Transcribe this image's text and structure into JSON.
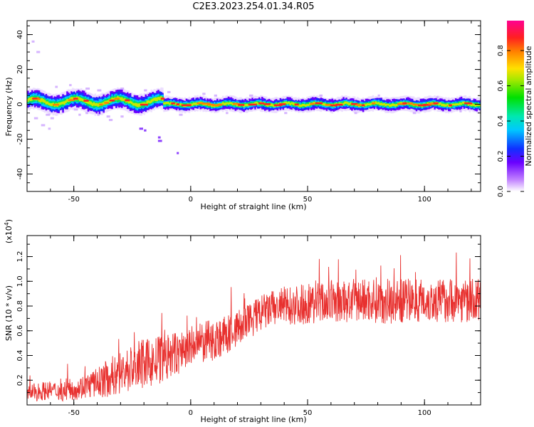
{
  "title": "C2E3.2023.254.01.34.R05",
  "chart_data": [
    {
      "type": "heatmap",
      "xlabel": "Height of straight line (km)",
      "ylabel": "Frequency (Hz)",
      "xlim": [
        -70,
        124
      ],
      "ylim": [
        -50,
        48
      ],
      "xticks": [
        -50,
        0,
        50,
        100
      ],
      "yticks": [
        -40,
        -20,
        0,
        20,
        40
      ],
      "colorbar": {
        "label": "Normalized spectral amplitude",
        "range": [
          0,
          0.97
        ],
        "ticks": [
          "0.0",
          "0.2",
          "0.4",
          "0.6",
          "0.8"
        ]
      },
      "grid": false
    },
    {
      "type": "line",
      "xlabel": "Height of straight line (km)",
      "ylabel": "SNR (10 * v/v)",
      "y_multiplier": "(x10^4)",
      "xlim": [
        -70,
        124
      ],
      "ylim": [
        0,
        1.37
      ],
      "xticks": [
        -50,
        0,
        50,
        100
      ],
      "yticks": [
        "0.2",
        "0.4",
        "0.6",
        "0.8",
        "1.0",
        "1.2"
      ],
      "color": "#e8312f",
      "grid": false,
      "series": [
        {
          "x": [
            -70,
            -65,
            -60,
            -55,
            -50,
            -45,
            -40,
            -35,
            -30,
            -25,
            -20,
            -15,
            -10,
            -5,
            0,
            5,
            10,
            15,
            20,
            25,
            30,
            35,
            40,
            45,
            50,
            55,
            60,
            65,
            70,
            75,
            80,
            85,
            90,
            95,
            100,
            105,
            110,
            115,
            120,
            124
          ],
          "y": [
            0.09,
            0.11,
            0.12,
            0.11,
            0.13,
            0.15,
            0.18,
            0.22,
            0.26,
            0.3,
            0.33,
            0.35,
            0.38,
            0.42,
            0.47,
            0.5,
            0.53,
            0.56,
            0.62,
            0.68,
            0.74,
            0.78,
            0.8,
            0.81,
            0.82,
            0.83,
            0.84,
            0.83,
            0.84,
            0.85,
            0.85,
            0.84,
            0.84,
            0.85,
            0.85,
            0.84,
            0.85,
            0.85,
            0.84,
            0.85
          ],
          "noise": [
            0.06,
            0.08,
            0.07,
            0.08,
            0.09,
            0.1,
            0.12,
            0.16,
            0.18,
            0.2,
            0.2,
            0.2,
            0.2,
            0.18,
            0.17,
            0.17,
            0.17,
            0.16,
            0.15,
            0.15,
            0.15,
            0.15,
            0.16,
            0.16,
            0.17,
            0.17,
            0.17,
            0.17,
            0.18,
            0.18,
            0.19,
            0.19,
            0.18,
            0.18,
            0.18,
            0.18,
            0.18,
            0.18,
            0.18,
            0.18
          ]
        }
      ]
    }
  ]
}
